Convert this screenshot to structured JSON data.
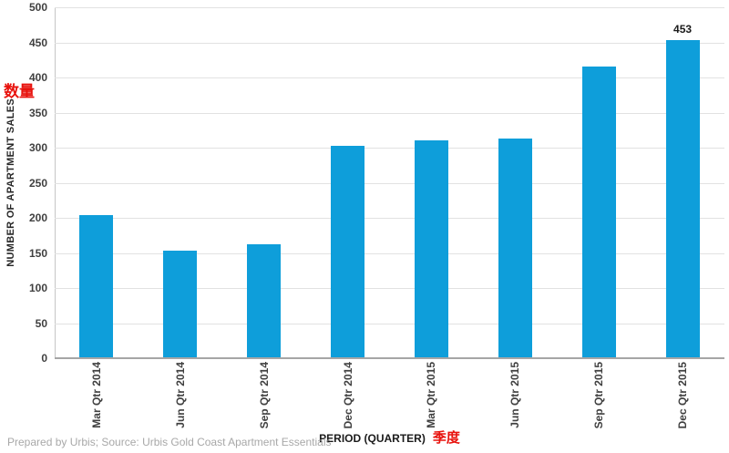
{
  "chart_data": {
    "type": "bar",
    "title": "",
    "categories": [
      "Mar Qtr 2014",
      "Jun Qtr 2014",
      "Sep Qtr 2014",
      "Dec Qtr 2014",
      "Mar Qtr 2015",
      "Jun Qtr 2015",
      "Sep Qtr 2015",
      "Dec Qtr 2015"
    ],
    "values": [
      204,
      153,
      163,
      303,
      310,
      313,
      415,
      453
    ],
    "bar_labels": [
      null,
      null,
      null,
      null,
      null,
      null,
      null,
      "453"
    ],
    "xlabel": "PERIOD (QUARTER)",
    "xlabel_annotation": "季度",
    "ylabel": "NUMBER OF APARTMENT SALES",
    "ylabel_annotation": "数量",
    "ylim": [
      0,
      500
    ],
    "ytick_step": 50,
    "grid": true,
    "legend": "none"
  },
  "colors": {
    "bar": "#0e9eda",
    "annotation_red": "#e8120d",
    "gridline": "#e2e2e2",
    "axis": "#a6a6a6",
    "tick_text": "#404040",
    "footer_text": "#a8a8a8"
  },
  "footer": {
    "source_text": "Prepared by Urbis; Source: Urbis Gold Coast Apartment Essentials"
  }
}
